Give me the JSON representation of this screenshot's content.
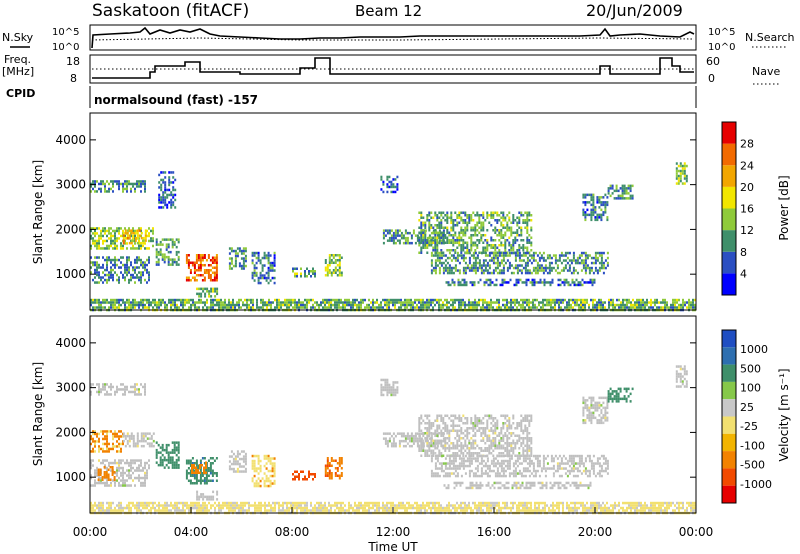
{
  "header": {
    "station": "Saskatoon (fitACF)",
    "beam": "Beam 12",
    "date": "20/Jun/2009"
  },
  "strips": {
    "nsky_label": "N.Sky",
    "nsearch_label": "N.Search",
    "freq_label_1": "Freq.",
    "freq_label_2": "[MHz]",
    "nave_label": "Nave",
    "cpid_label": "CPID",
    "cpid_text": "normalsound (fast) -157",
    "noise_left_ticks": [
      "10^5",
      "10^0"
    ],
    "noise_right_ticks": [
      "10^5",
      "10^0"
    ],
    "freq_left_ticks": [
      "18",
      "8"
    ],
    "freq_right_ticks": [
      "60",
      "0"
    ]
  },
  "colors": {
    "power_scale": [
      "#0000ff",
      "#2b4fc2",
      "#3f8f6a",
      "#8fca3a",
      "#f2e600",
      "#f2a600",
      "#f26a00",
      "#e60000"
    ],
    "velocity_scale": [
      "#1f4ec2",
      "#2e6fb0",
      "#3f8f6a",
      "#86c84a",
      "#c8c8c8",
      "#f2e070",
      "#f2b400",
      "#f28200",
      "#f24a00",
      "#e60000"
    ],
    "ground_scatter": "#c0c0c0"
  },
  "chart_data": [
    {
      "type": "heatmap",
      "name": "power",
      "ylabel": "Slant Range [km]",
      "ylim": [
        200,
        4600
      ],
      "yticks": [
        "1000",
        "2000",
        "3000",
        "4000"
      ],
      "colorbar": {
        "label": "Power [dB]",
        "range": [
          0,
          32
        ],
        "ticks": [
          "4",
          "8",
          "12",
          "16",
          "20",
          "24",
          "28"
        ]
      },
      "regions": [
        {
          "t": [
            0.0,
            2.2
          ],
          "r": [
            2850,
            3100
          ],
          "p": 9
        },
        {
          "t": [
            0.0,
            2.5
          ],
          "r": [
            1600,
            2050
          ],
          "p": 14
        },
        {
          "t": [
            1.3,
            2.2
          ],
          "r": [
            1700,
            2000
          ],
          "p": 20
        },
        {
          "t": [
            0.0,
            2.3
          ],
          "r": [
            800,
            1400
          ],
          "p": 9
        },
        {
          "t": [
            2.6,
            3.5
          ],
          "r": [
            1200,
            1800
          ],
          "p": 11
        },
        {
          "t": [
            2.7,
            3.4
          ],
          "r": [
            2500,
            3300
          ],
          "p": 7
        },
        {
          "t": [
            3.8,
            5.0
          ],
          "r": [
            850,
            1450
          ],
          "p": 26
        },
        {
          "t": [
            4.2,
            5.0
          ],
          "r": [
            500,
            700
          ],
          "p": 13
        },
        {
          "t": [
            5.5,
            6.2
          ],
          "r": [
            1100,
            1600
          ],
          "p": 10
        },
        {
          "t": [
            6.4,
            7.3
          ],
          "r": [
            800,
            1500
          ],
          "p": 8
        },
        {
          "t": [
            8.0,
            8.9
          ],
          "r": [
            950,
            1150
          ],
          "p": 12
        },
        {
          "t": [
            9.3,
            10.0
          ],
          "r": [
            1000,
            1450
          ],
          "p": 14
        },
        {
          "t": [
            11.5,
            12.2
          ],
          "r": [
            2850,
            3200
          ],
          "p": 7
        },
        {
          "t": [
            11.6,
            14.0
          ],
          "r": [
            1700,
            2000
          ],
          "p": 10
        },
        {
          "t": [
            13.0,
            17.5
          ],
          "r": [
            1500,
            2400
          ],
          "p": 12
        },
        {
          "t": [
            13.5,
            20.5
          ],
          "r": [
            1000,
            1500
          ],
          "p": 10
        },
        {
          "t": [
            14.0,
            20.0
          ],
          "r": [
            750,
            900
          ],
          "p": 8
        },
        {
          "t": [
            19.5,
            20.5
          ],
          "r": [
            2200,
            2800
          ],
          "p": 8
        },
        {
          "t": [
            20.5,
            21.5
          ],
          "r": [
            2700,
            3000
          ],
          "p": 10
        },
        {
          "t": [
            23.2,
            23.6
          ],
          "r": [
            3000,
            3500
          ],
          "p": 14
        },
        {
          "t": [
            0.0,
            24.0
          ],
          "r": [
            200,
            450
          ],
          "p": 12
        }
      ]
    },
    {
      "type": "heatmap",
      "name": "velocity",
      "xlabel": "Time UT",
      "ylabel": "Slant Range [km]",
      "xlim": [
        0,
        24
      ],
      "xticks": [
        "00:00",
        "04:00",
        "08:00",
        "12:00",
        "16:00",
        "20:00",
        "00:00"
      ],
      "ylim": [
        200,
        4600
      ],
      "yticks": [
        "1000",
        "2000",
        "3000",
        "4000"
      ],
      "colorbar": {
        "label": "Velocity [m s⁻¹]",
        "ticks": [
          "1000",
          "500",
          "100",
          "25",
          "-25",
          "-100",
          "-500",
          "-1000"
        ]
      },
      "regions": [
        {
          "t": [
            0.0,
            2.2
          ],
          "r": [
            2850,
            3100
          ],
          "v": 0,
          "g": true
        },
        {
          "t": [
            0.0,
            1.3
          ],
          "r": [
            1600,
            2050
          ],
          "v": -120
        },
        {
          "t": [
            1.3,
            2.5
          ],
          "r": [
            1700,
            2000
          ],
          "v": 0,
          "g": true
        },
        {
          "t": [
            0.0,
            2.3
          ],
          "r": [
            800,
            1400
          ],
          "v": 0,
          "g": true
        },
        {
          "t": [
            0.3,
            1.0
          ],
          "r": [
            950,
            1250
          ],
          "v": -150
        },
        {
          "t": [
            2.6,
            3.5
          ],
          "r": [
            1200,
            1800
          ],
          "v": 200
        },
        {
          "t": [
            3.8,
            5.0
          ],
          "r": [
            850,
            1450
          ],
          "v": 400
        },
        {
          "t": [
            4.0,
            4.6
          ],
          "r": [
            1100,
            1350
          ],
          "v": -250
        },
        {
          "t": [
            4.2,
            5.0
          ],
          "r": [
            500,
            700
          ],
          "v": 0,
          "g": true
        },
        {
          "t": [
            5.5,
            6.2
          ],
          "r": [
            1100,
            1600
          ],
          "v": 0,
          "g": true
        },
        {
          "t": [
            6.4,
            7.3
          ],
          "r": [
            800,
            1500
          ],
          "v": -80
        },
        {
          "t": [
            8.0,
            8.9
          ],
          "r": [
            950,
            1150
          ],
          "v": -700
        },
        {
          "t": [
            9.3,
            10.0
          ],
          "r": [
            1000,
            1450
          ],
          "v": -450
        },
        {
          "t": [
            11.5,
            12.2
          ],
          "r": [
            2850,
            3200
          ],
          "v": 0,
          "g": true
        },
        {
          "t": [
            11.6,
            14.0
          ],
          "r": [
            1700,
            2000
          ],
          "v": 0,
          "g": true
        },
        {
          "t": [
            13.0,
            17.5
          ],
          "r": [
            1500,
            2400
          ],
          "v": 0,
          "g": true
        },
        {
          "t": [
            13.5,
            20.5
          ],
          "r": [
            1000,
            1500
          ],
          "v": 0,
          "g": true
        },
        {
          "t": [
            14.0,
            20.0
          ],
          "r": [
            750,
            900
          ],
          "v": 0,
          "g": true
        },
        {
          "t": [
            19.5,
            20.5
          ],
          "r": [
            2200,
            2800
          ],
          "v": 0,
          "g": true
        },
        {
          "t": [
            20.5,
            21.5
          ],
          "r": [
            2700,
            3000
          ],
          "v": 300
        },
        {
          "t": [
            23.2,
            23.6
          ],
          "r": [
            3000,
            3500
          ],
          "v": 0,
          "g": true
        },
        {
          "t": [
            0.0,
            24.0
          ],
          "r": [
            200,
            450
          ],
          "v": -40
        }
      ]
    }
  ]
}
